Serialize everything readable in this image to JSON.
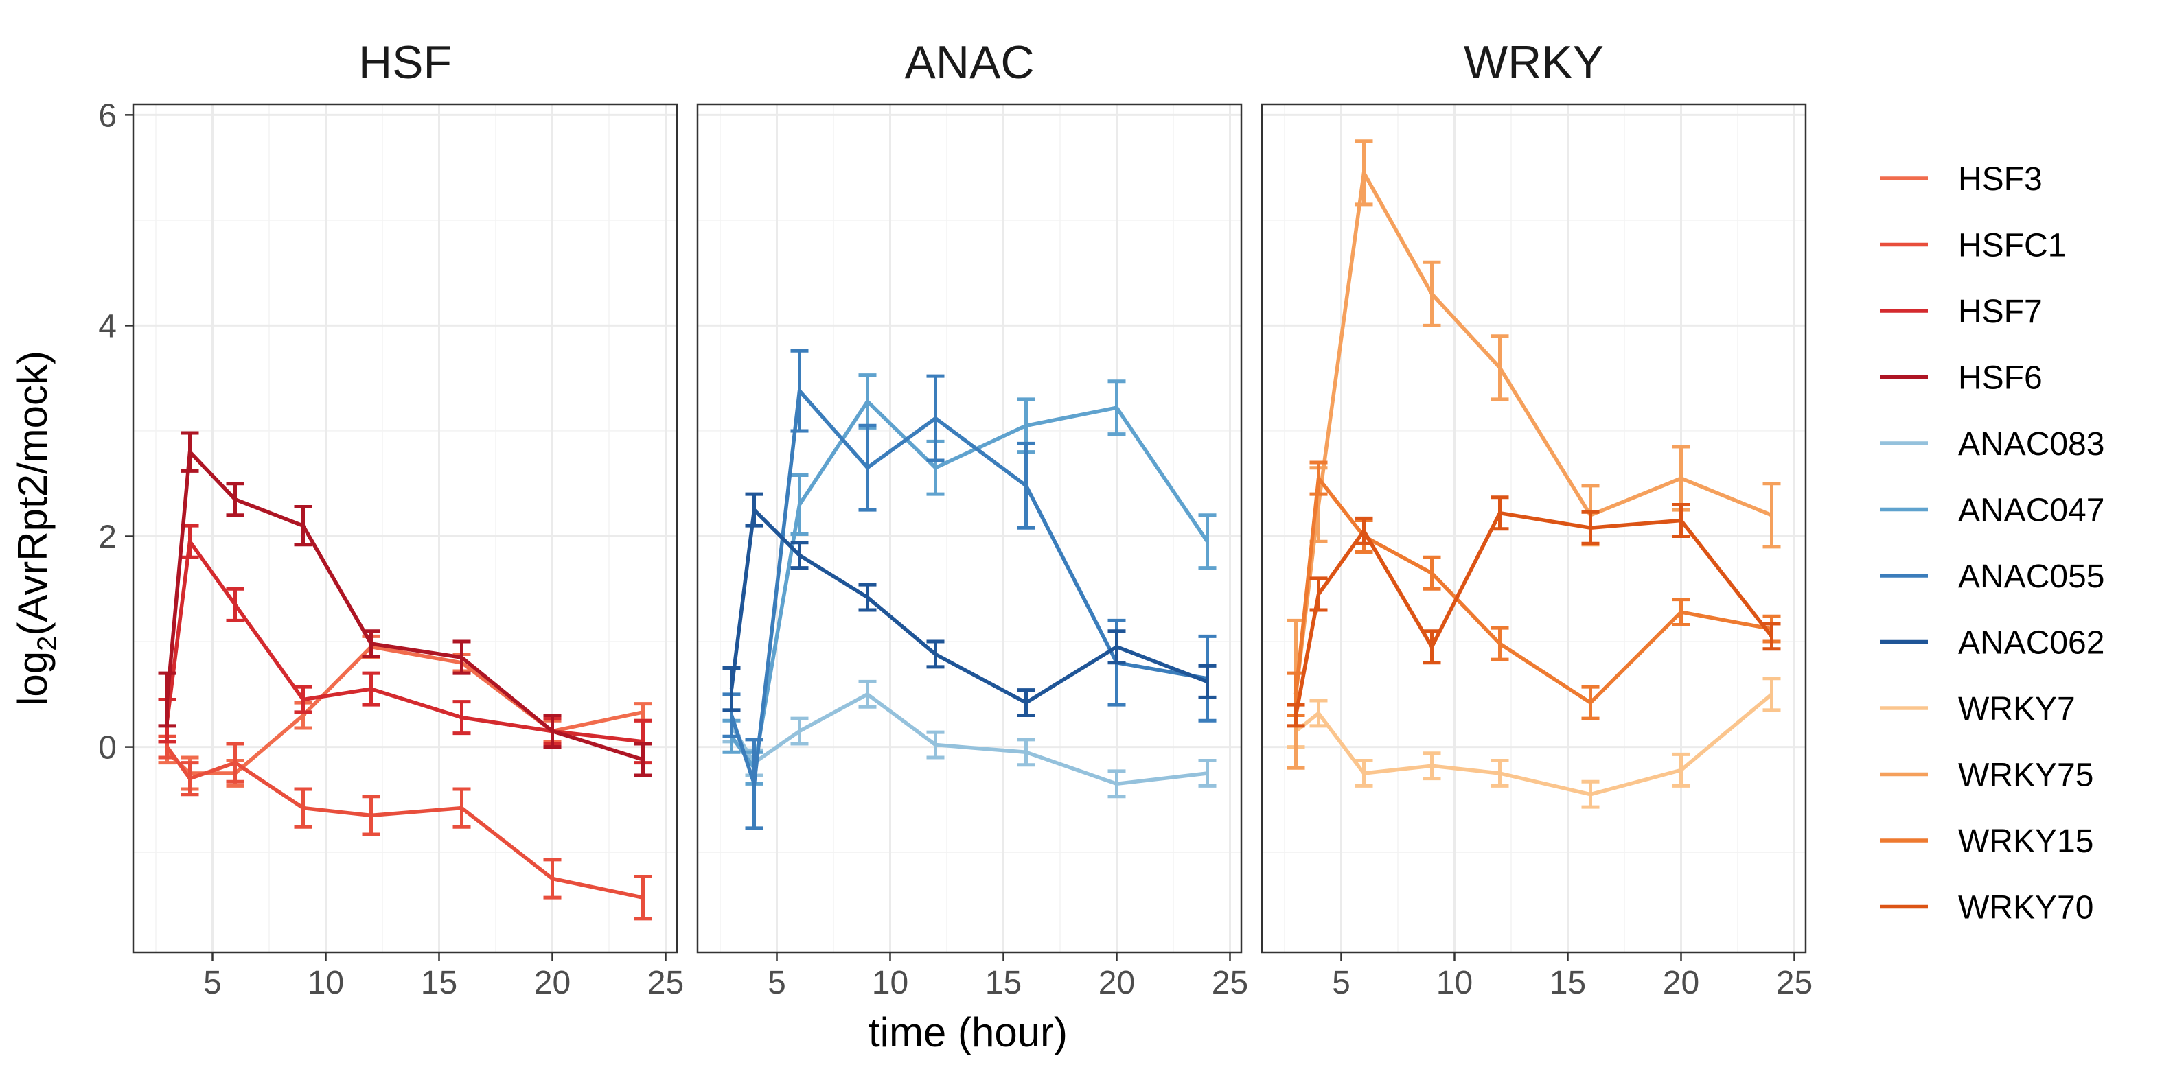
{
  "chart_data": {
    "type": "line",
    "xlabel": "time (hour)",
    "ylabel_main": "log",
    "ylabel_sub": "2",
    "ylabel_rest": "(AvrRpt2/mock)",
    "xlim": [
      1.5,
      25.5
    ],
    "ylim": [
      -1.95,
      6.1
    ],
    "x_ticks": [
      5,
      10,
      15,
      20,
      25
    ],
    "y_ticks": [
      0,
      2,
      4,
      6
    ],
    "grid": true,
    "legend_position": "right",
    "panels": [
      {
        "title": "HSF",
        "series": [
          {
            "name": "HSF3",
            "color": "#F16C4D",
            "x": [
              3,
              4,
              6,
              9,
              12,
              16,
              20,
              24
            ],
            "y": [
              -0.05,
              -0.25,
              -0.25,
              0.3,
              0.95,
              0.8,
              0.15,
              0.33
            ],
            "err": [
              0.1,
              0.15,
              0.12,
              0.12,
              0.1,
              0.08,
              0.1,
              0.08
            ]
          },
          {
            "name": "HSFC1",
            "color": "#E84E3C",
            "x": [
              3,
              4,
              6,
              9,
              12,
              16,
              20,
              24
            ],
            "y": [
              0.0,
              -0.3,
              -0.15,
              -0.58,
              -0.65,
              -0.58,
              -1.25,
              -1.43
            ],
            "err": [
              0.1,
              0.15,
              0.18,
              0.18,
              0.18,
              0.18,
              0.18,
              0.2
            ]
          },
          {
            "name": "HSF7",
            "color": "#D42A2E",
            "x": [
              3,
              4,
              6,
              9,
              12,
              16,
              20,
              24
            ],
            "y": [
              0.25,
              1.95,
              1.35,
              0.45,
              0.55,
              0.28,
              0.15,
              0.05
            ],
            "err": [
              0.2,
              0.15,
              0.15,
              0.12,
              0.15,
              0.15,
              0.12,
              0.2
            ]
          },
          {
            "name": "HSF6",
            "color": "#AE1524",
            "x": [
              3,
              4,
              6,
              9,
              12,
              16,
              20,
              24
            ],
            "y": [
              0.45,
              2.8,
              2.35,
              2.1,
              0.98,
              0.85,
              0.15,
              -0.12
            ],
            "err": [
              0.25,
              0.18,
              0.15,
              0.18,
              0.12,
              0.15,
              0.15,
              0.15
            ]
          }
        ]
      },
      {
        "title": "ANAC",
        "series": [
          {
            "name": "ANAC083",
            "color": "#94C1DC",
            "x": [
              3,
              4,
              6,
              9,
              12,
              16,
              20,
              24
            ],
            "y": [
              0.2,
              -0.15,
              0.15,
              0.5,
              0.02,
              -0.05,
              -0.35,
              -0.25
            ],
            "err": [
              0.15,
              0.12,
              0.12,
              0.12,
              0.12,
              0.12,
              0.12,
              0.12
            ]
          },
          {
            "name": "ANAC047",
            "color": "#5FA2CE",
            "x": [
              3,
              4,
              6,
              9,
              12,
              16,
              20,
              24
            ],
            "y": [
              0.1,
              -0.2,
              2.3,
              3.28,
              2.65,
              3.05,
              3.22,
              1.95
            ],
            "err": [
              0.15,
              0.15,
              0.28,
              0.25,
              0.25,
              0.25,
              0.25,
              0.25
            ]
          },
          {
            "name": "ANAC055",
            "color": "#3B7DBB",
            "x": [
              3,
              4,
              6,
              9,
              12,
              16,
              20,
              24
            ],
            "y": [
              0.3,
              -0.35,
              3.38,
              2.65,
              3.12,
              2.48,
              0.8,
              0.65
            ],
            "err": [
              0.2,
              0.42,
              0.38,
              0.4,
              0.4,
              0.4,
              0.4,
              0.4
            ]
          },
          {
            "name": "ANAC062",
            "color": "#1F5597",
            "x": [
              3,
              4,
              6,
              9,
              12,
              16,
              20,
              24
            ],
            "y": [
              0.55,
              2.25,
              1.82,
              1.42,
              0.88,
              0.42,
              0.95,
              0.62
            ],
            "err": [
              0.2,
              0.15,
              0.12,
              0.12,
              0.12,
              0.12,
              0.15,
              0.15
            ]
          }
        ]
      },
      {
        "title": "WRKY",
        "series": [
          {
            "name": "WRKY7",
            "color": "#FBC58D",
            "x": [
              3,
              4,
              6,
              9,
              12,
              16,
              20,
              24
            ],
            "y": [
              0.15,
              0.32,
              -0.25,
              -0.18,
              -0.25,
              -0.45,
              -0.22,
              0.5
            ],
            "err": [
              0.15,
              0.12,
              0.12,
              0.12,
              0.12,
              0.12,
              0.15,
              0.15
            ]
          },
          {
            "name": "WRKY75",
            "color": "#F5A05C",
            "x": [
              3,
              4,
              6,
              9,
              12,
              16,
              20,
              24
            ],
            "y": [
              0.5,
              2.3,
              5.45,
              4.3,
              3.6,
              2.2,
              2.55,
              2.2
            ],
            "err": [
              0.7,
              0.35,
              0.3,
              0.3,
              0.3,
              0.28,
              0.3,
              0.3
            ]
          },
          {
            "name": "WRKY15",
            "color": "#EE7A30",
            "x": [
              3,
              4,
              6,
              9,
              12,
              16,
              20,
              24
            ],
            "y": [
              0.5,
              2.55,
              2.0,
              1.65,
              0.98,
              0.42,
              1.28,
              1.12
            ],
            "err": [
              0.2,
              0.15,
              0.15,
              0.15,
              0.15,
              0.15,
              0.12,
              0.12
            ]
          },
          {
            "name": "WRKY70",
            "color": "#DC5415",
            "x": [
              3,
              4,
              6,
              9,
              12,
              16,
              20,
              24
            ],
            "y": [
              0.3,
              1.45,
              2.05,
              0.95,
              2.22,
              2.08,
              2.15,
              1.05
            ],
            "err": [
              0.1,
              0.15,
              0.12,
              0.15,
              0.15,
              0.15,
              0.15,
              0.12
            ]
          }
        ]
      }
    ]
  }
}
